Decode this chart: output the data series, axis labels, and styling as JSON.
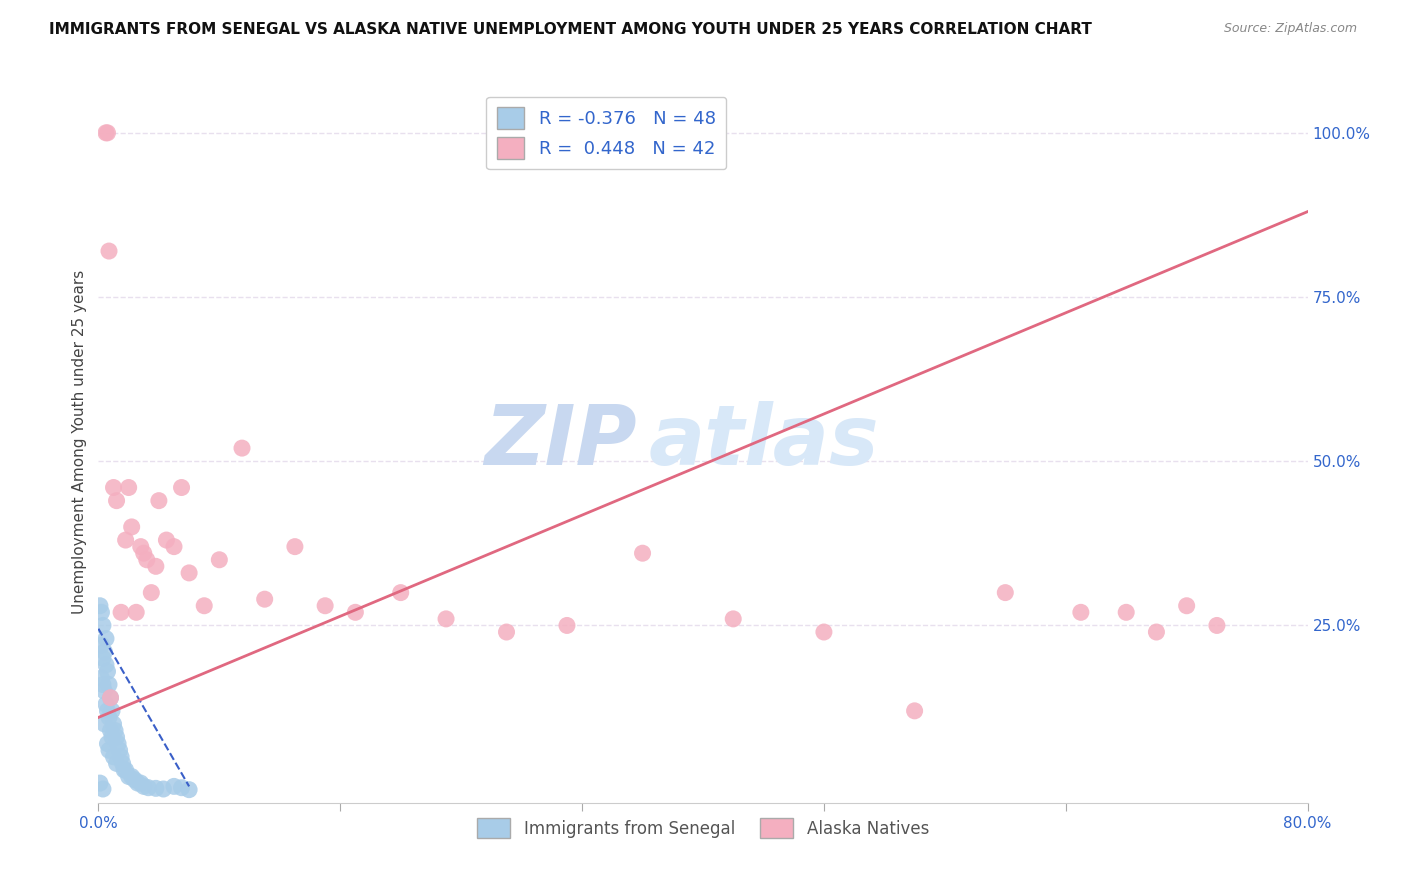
{
  "title": "IMMIGRANTS FROM SENEGAL VS ALASKA NATIVE UNEMPLOYMENT AMONG YOUTH UNDER 25 YEARS CORRELATION CHART",
  "source": "Source: ZipAtlas.com",
  "ylabel": "Unemployment Among Youth under 25 years",
  "xlim": [
    0.0,
    0.8
  ],
  "ylim": [
    -0.02,
    1.08
  ],
  "xticks": [
    0.0,
    0.16,
    0.32,
    0.48,
    0.64,
    0.8
  ],
  "xticklabels": [
    "0.0%",
    "",
    "",
    "",
    "",
    "80.0%"
  ],
  "yticks_right": [
    0.25,
    0.5,
    0.75,
    1.0
  ],
  "yticklabels_right": [
    "25.0%",
    "50.0%",
    "75.0%",
    "100.0%"
  ],
  "watermark_zip": "ZIP",
  "watermark_atlas": "atlas",
  "legend_line1": "R = -0.376   N = 48",
  "legend_line2": "R =  0.448   N = 42",
  "blue_scatter_x": [
    0.001,
    0.002,
    0.002,
    0.002,
    0.003,
    0.003,
    0.003,
    0.004,
    0.004,
    0.004,
    0.005,
    0.005,
    0.005,
    0.006,
    0.006,
    0.006,
    0.007,
    0.007,
    0.007,
    0.008,
    0.008,
    0.009,
    0.009,
    0.01,
    0.01,
    0.011,
    0.012,
    0.012,
    0.013,
    0.014,
    0.015,
    0.016,
    0.017,
    0.018,
    0.02,
    0.022,
    0.024,
    0.026,
    0.028,
    0.03,
    0.033,
    0.038,
    0.043,
    0.05,
    0.055,
    0.06,
    0.001,
    0.003
  ],
  "blue_scatter_y": [
    0.28,
    0.27,
    0.22,
    0.17,
    0.25,
    0.2,
    0.16,
    0.21,
    0.15,
    0.1,
    0.23,
    0.19,
    0.13,
    0.18,
    0.12,
    0.07,
    0.16,
    0.11,
    0.06,
    0.14,
    0.09,
    0.12,
    0.08,
    0.1,
    0.05,
    0.09,
    0.08,
    0.04,
    0.07,
    0.06,
    0.05,
    0.04,
    0.03,
    0.03,
    0.02,
    0.02,
    0.015,
    0.01,
    0.01,
    0.005,
    0.003,
    0.002,
    0.001,
    0.005,
    0.003,
    0.0,
    0.01,
    0.001
  ],
  "pink_scatter_x": [
    0.005,
    0.006,
    0.007,
    0.008,
    0.01,
    0.012,
    0.015,
    0.018,
    0.02,
    0.022,
    0.025,
    0.028,
    0.03,
    0.032,
    0.035,
    0.038,
    0.04,
    0.045,
    0.05,
    0.055,
    0.06,
    0.07,
    0.08,
    0.095,
    0.11,
    0.13,
    0.15,
    0.17,
    0.2,
    0.23,
    0.27,
    0.31,
    0.36,
    0.42,
    0.48,
    0.54,
    0.6,
    0.65,
    0.68,
    0.7,
    0.72,
    0.74
  ],
  "pink_scatter_y": [
    1.0,
    1.0,
    0.82,
    0.14,
    0.46,
    0.44,
    0.27,
    0.38,
    0.46,
    0.4,
    0.27,
    0.37,
    0.36,
    0.35,
    0.3,
    0.34,
    0.44,
    0.38,
    0.37,
    0.46,
    0.33,
    0.28,
    0.35,
    0.52,
    0.29,
    0.37,
    0.28,
    0.27,
    0.3,
    0.26,
    0.24,
    0.25,
    0.36,
    0.26,
    0.24,
    0.12,
    0.3,
    0.27,
    0.27,
    0.24,
    0.28,
    0.25
  ],
  "blue_line_x": [
    0.0,
    0.06
  ],
  "blue_line_y": [
    0.245,
    0.005
  ],
  "pink_line_x": [
    0.0,
    0.8
  ],
  "pink_line_y": [
    0.11,
    0.88
  ],
  "blue_color": "#a8cce8",
  "pink_color": "#f4afc0",
  "blue_line_color": "#3a5fc8",
  "pink_line_color": "#e06880",
  "background_color": "#ffffff",
  "grid_color": "#e8e0ee",
  "title_fontsize": 11,
  "watermark_color_zip": "#c8d8f0",
  "watermark_color_atlas": "#d8e8f8",
  "watermark_fontsize": 60
}
